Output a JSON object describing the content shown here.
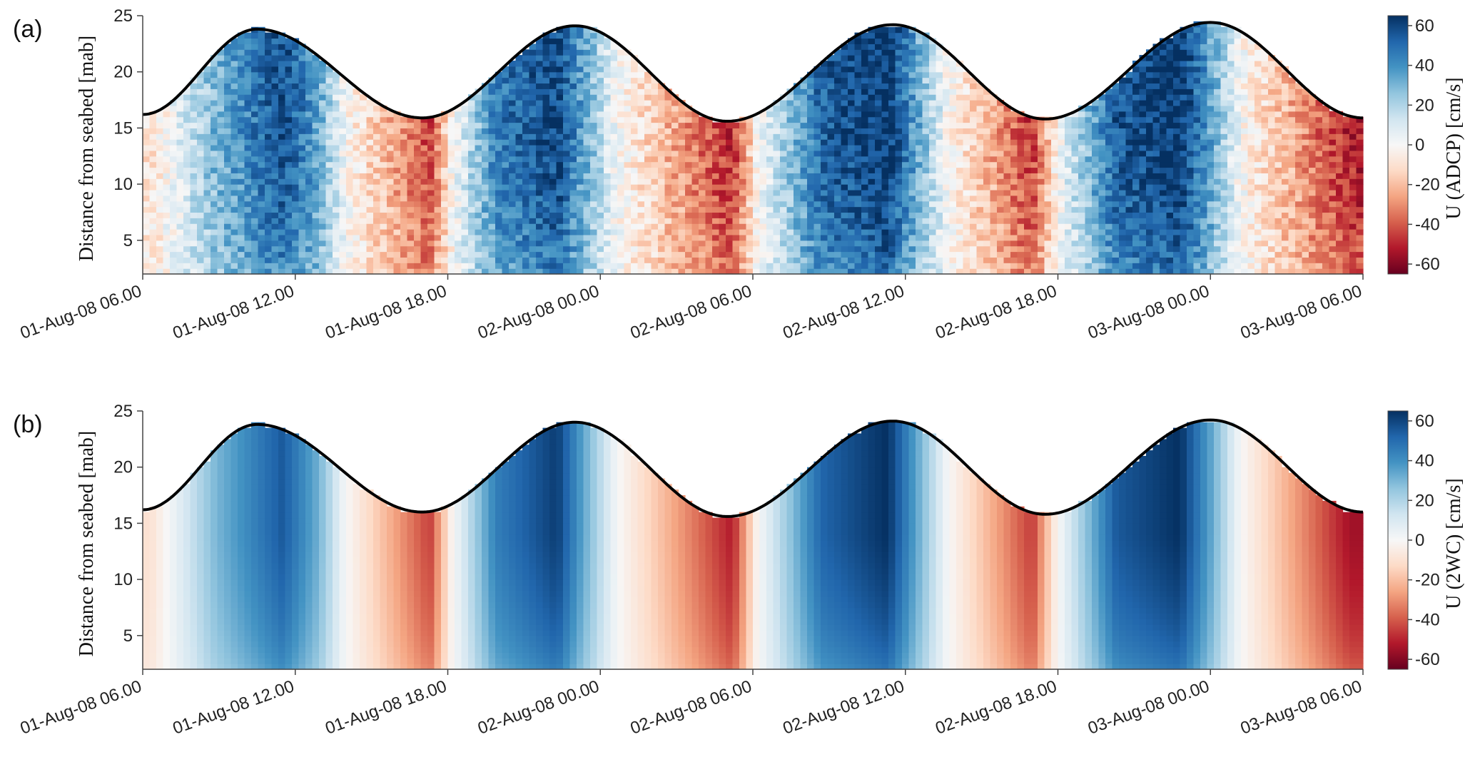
{
  "chart_data": [
    {
      "type": "heatmap",
      "panel_label": "(a)",
      "ylabel": "Distance from seabed [mab]",
      "colorbar_label": "U (ADCP) [cm/s]",
      "x_tick_labels": [
        "01-Aug-08 06.00",
        "01-Aug-08 12.00",
        "01-Aug-08 18.00",
        "02-Aug-08 00.00",
        "02-Aug-08 06.00",
        "02-Aug-08 12.00",
        "02-Aug-08 18.00",
        "03-Aug-08 00.00",
        "03-Aug-08 06.00"
      ],
      "x_range_hours": [
        0,
        48
      ],
      "ylim": [
        2,
        25
      ],
      "y_ticks": [
        5,
        10,
        15,
        20,
        25
      ],
      "clim": [
        -65,
        65
      ],
      "colorbar_ticks": [
        60,
        40,
        20,
        0,
        -20,
        -40,
        -60
      ],
      "colormap": [
        "#67001f",
        "#b2182b",
        "#d6604d",
        "#f4a582",
        "#fddbc7",
        "#f7f7f7",
        "#d1e5f0",
        "#92c5de",
        "#4393c3",
        "#2166ac",
        "#053061"
      ],
      "noisy": true,
      "surface_elevation": {
        "hours": [
          0,
          4.5,
          11,
          17,
          23,
          29.5,
          35.5,
          42,
          48
        ],
        "mab": [
          16.2,
          23.8,
          15.9,
          24.1,
          15.6,
          24.2,
          15.8,
          24.4,
          15.9
        ]
      },
      "velocity_profile": {
        "hours": [
          0.3,
          2.9,
          5.5,
          6.9,
          8.0,
          11.3,
          12.2,
          13.9,
          16.3,
          17.5,
          18.7,
          23.2,
          24.2,
          26.7,
          29.3,
          30.6,
          31.7,
          35.0,
          36.0,
          38.3,
          40.8,
          42.0,
          43.2,
          47.5
        ],
        "u_cm_s": [
          -10,
          30,
          58,
          35,
          0,
          -44,
          0,
          45,
          60,
          30,
          0,
          -50,
          0,
          52,
          65,
          30,
          0,
          -47,
          0,
          55,
          65,
          35,
          0,
          -52
        ]
      }
    },
    {
      "type": "heatmap",
      "panel_label": "(b)",
      "ylabel": "Distance from seabed [mab]",
      "colorbar_label": "U (2WC) [cm/s]",
      "x_tick_labels": [
        "01-Aug-08 06.00",
        "01-Aug-08 12.00",
        "01-Aug-08 18.00",
        "02-Aug-08 00.00",
        "02-Aug-08 06.00",
        "02-Aug-08 12.00",
        "02-Aug-08 18.00",
        "03-Aug-08 00.00",
        "03-Aug-08 06.00"
      ],
      "x_range_hours": [
        0,
        48
      ],
      "ylim": [
        2,
        25
      ],
      "y_ticks": [
        5,
        10,
        15,
        20,
        25
      ],
      "clim": [
        -65,
        65
      ],
      "colorbar_ticks": [
        60,
        40,
        20,
        0,
        -20,
        -40,
        -60
      ],
      "colormap": [
        "#67001f",
        "#b2182b",
        "#d6604d",
        "#f4a582",
        "#fddbc7",
        "#f7f7f7",
        "#d1e5f0",
        "#92c5de",
        "#4393c3",
        "#2166ac",
        "#053061"
      ],
      "noisy": false,
      "surface_elevation": {
        "hours": [
          0,
          4.5,
          11,
          17,
          23,
          29.5,
          35.5,
          42,
          48
        ],
        "mab": [
          16.2,
          23.8,
          16.0,
          24.0,
          15.6,
          24.1,
          15.8,
          24.2,
          16.0
        ]
      },
      "velocity_profile": {
        "hours": [
          0.3,
          2.9,
          5.5,
          6.9,
          8.0,
          11.3,
          12.2,
          13.9,
          16.3,
          17.5,
          18.7,
          23.2,
          24.2,
          26.7,
          29.3,
          30.6,
          31.7,
          35.0,
          36.0,
          38.3,
          40.8,
          42.0,
          43.2,
          47.5
        ],
        "u_cm_s": [
          -10,
          30,
          55,
          32,
          0,
          -45,
          0,
          45,
          62,
          30,
          0,
          -52,
          0,
          52,
          65,
          30,
          0,
          -46,
          0,
          55,
          65,
          35,
          0,
          -55
        ]
      }
    }
  ]
}
